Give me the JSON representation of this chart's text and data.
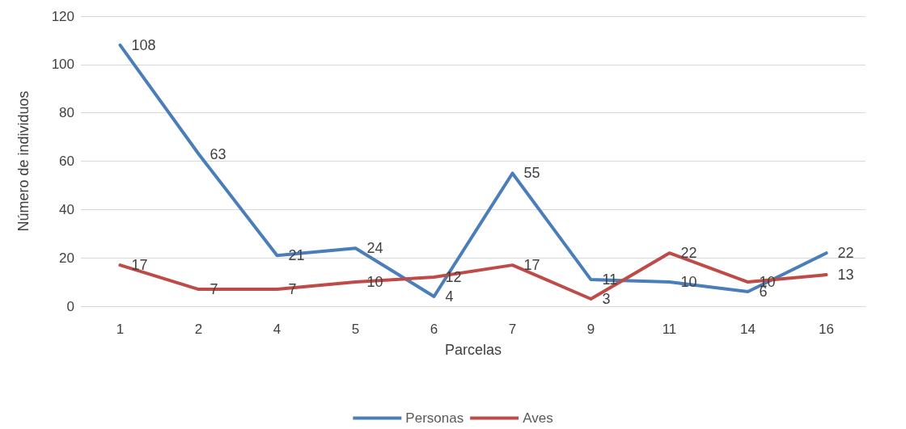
{
  "chart_data": {
    "type": "line",
    "xlabel": "Parcelas",
    "ylabel": "Número de individuos",
    "categories": [
      "1",
      "2",
      "4",
      "5",
      "6",
      "7",
      "9",
      "11",
      "14",
      "16"
    ],
    "series": [
      {
        "name": "Personas",
        "color": "#4a7ebb",
        "values": [
          108,
          63,
          21,
          24,
          4,
          55,
          11,
          10,
          6,
          22
        ]
      },
      {
        "name": "Aves",
        "color": "#be4b48",
        "values": [
          17,
          7,
          7,
          10,
          12,
          17,
          3,
          22,
          10,
          13
        ]
      }
    ],
    "ylim": [
      0,
      120
    ],
    "yticks": [
      0,
      20,
      40,
      60,
      80,
      100,
      120
    ],
    "grid": "y",
    "legend": "bottom",
    "data_labels": true,
    "marker": "none",
    "line_style": "solid"
  }
}
